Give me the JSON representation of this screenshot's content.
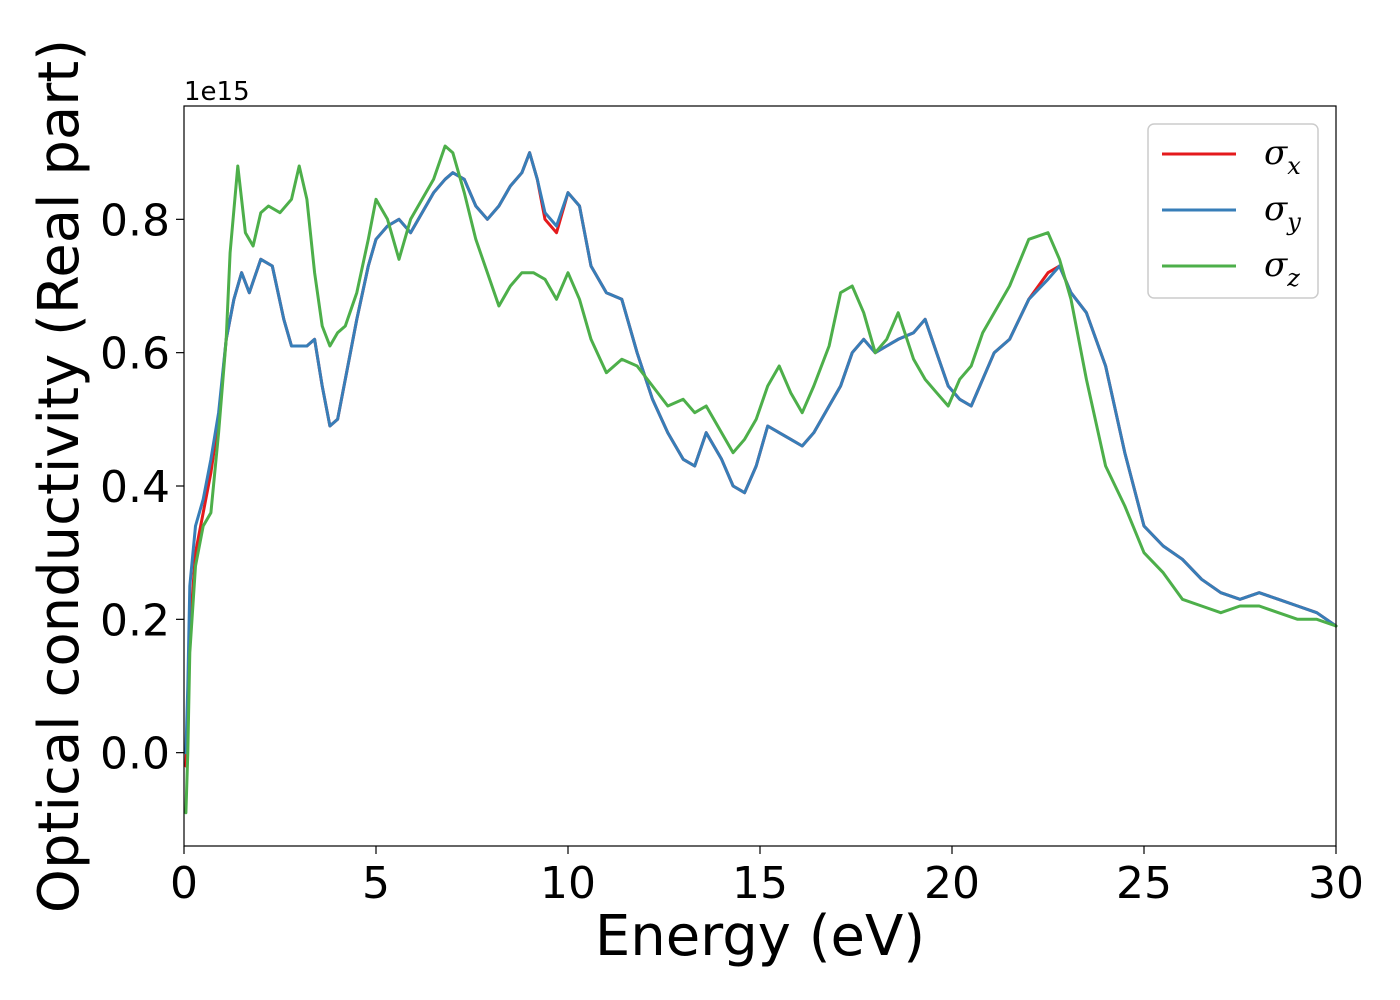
{
  "chart_data": {
    "type": "line",
    "xlabel": "Energy (eV)",
    "ylabel": "Optical conductivity (Real part)",
    "y_offset_label": "1e15",
    "xlim": [
      0,
      30
    ],
    "ylim": [
      -0.14,
      0.97
    ],
    "xticks": [
      "0",
      "5",
      "10",
      "15",
      "20",
      "25",
      "30"
    ],
    "yticks": [
      "0.0",
      "0.2",
      "0.4",
      "0.6",
      "0.8"
    ],
    "grid": false,
    "legend_position": "top-right",
    "series": [
      {
        "name": "σx",
        "symbol": "σ",
        "subscript": "x",
        "color": "#e41a1c",
        "x": [
          0.05,
          0.1,
          0.15,
          0.3,
          0.5,
          0.7,
          0.9,
          1.1,
          1.3,
          1.5,
          1.7,
          2.0,
          2.3,
          2.6,
          2.8,
          3.0,
          3.2,
          3.4,
          3.6,
          3.8,
          4.0,
          4.2,
          4.5,
          4.8,
          5.0,
          5.3,
          5.6,
          5.9,
          6.2,
          6.5,
          6.8,
          7.0,
          7.3,
          7.6,
          7.9,
          8.2,
          8.5,
          8.8,
          9.0,
          9.2,
          9.4,
          9.7,
          10.0,
          10.3,
          10.6,
          11.0,
          11.4,
          11.8,
          12.2,
          12.6,
          13.0,
          13.3,
          13.6,
          14.0,
          14.3,
          14.6,
          14.9,
          15.2,
          15.5,
          15.8,
          16.1,
          16.4,
          16.8,
          17.1,
          17.4,
          17.7,
          18.0,
          18.3,
          18.6,
          19.0,
          19.3,
          19.6,
          19.9,
          20.2,
          20.5,
          20.8,
          21.1,
          21.5,
          22.0,
          22.5,
          22.8,
          23.1,
          23.5,
          24.0,
          24.5,
          25.0,
          25.5,
          26.0,
          26.5,
          27.0,
          27.5,
          28.0,
          28.5,
          29.0,
          29.5,
          30.0
        ],
        "y": [
          -0.02,
          0.05,
          0.18,
          0.3,
          0.36,
          0.42,
          0.5,
          0.62,
          0.68,
          0.72,
          0.69,
          0.74,
          0.73,
          0.65,
          0.61,
          0.61,
          0.61,
          0.62,
          0.55,
          0.49,
          0.5,
          0.56,
          0.65,
          0.73,
          0.77,
          0.79,
          0.8,
          0.78,
          0.81,
          0.84,
          0.86,
          0.87,
          0.86,
          0.82,
          0.8,
          0.82,
          0.85,
          0.87,
          0.9,
          0.86,
          0.8,
          0.78,
          0.84,
          0.82,
          0.73,
          0.69,
          0.68,
          0.6,
          0.53,
          0.48,
          0.44,
          0.43,
          0.48,
          0.44,
          0.4,
          0.39,
          0.43,
          0.49,
          0.48,
          0.47,
          0.46,
          0.48,
          0.52,
          0.55,
          0.6,
          0.62,
          0.6,
          0.61,
          0.62,
          0.63,
          0.65,
          0.6,
          0.55,
          0.53,
          0.52,
          0.56,
          0.6,
          0.62,
          0.68,
          0.72,
          0.73,
          0.69,
          0.66,
          0.58,
          0.45,
          0.34,
          0.31,
          0.29,
          0.26,
          0.24,
          0.23,
          0.24,
          0.23,
          0.22,
          0.21,
          0.19
        ]
      },
      {
        "name": "σy",
        "symbol": "σ",
        "subscript": "y",
        "color": "#377eb8",
        "x": [
          0.05,
          0.1,
          0.15,
          0.3,
          0.5,
          0.7,
          0.9,
          1.1,
          1.3,
          1.5,
          1.7,
          2.0,
          2.3,
          2.6,
          2.8,
          3.0,
          3.2,
          3.4,
          3.6,
          3.8,
          4.0,
          4.2,
          4.5,
          4.8,
          5.0,
          5.3,
          5.6,
          5.9,
          6.2,
          6.5,
          6.8,
          7.0,
          7.3,
          7.6,
          7.9,
          8.2,
          8.5,
          8.8,
          9.0,
          9.2,
          9.4,
          9.7,
          10.0,
          10.3,
          10.6,
          11.0,
          11.4,
          11.8,
          12.2,
          12.6,
          13.0,
          13.3,
          13.6,
          14.0,
          14.3,
          14.6,
          14.9,
          15.2,
          15.5,
          15.8,
          16.1,
          16.4,
          16.8,
          17.1,
          17.4,
          17.7,
          18.0,
          18.3,
          18.6,
          19.0,
          19.3,
          19.6,
          19.9,
          20.2,
          20.5,
          20.8,
          21.1,
          21.5,
          22.0,
          22.5,
          22.8,
          23.1,
          23.5,
          24.0,
          24.5,
          25.0,
          25.5,
          26.0,
          26.5,
          27.0,
          27.5,
          28.0,
          28.5,
          29.0,
          29.5,
          30.0
        ],
        "y": [
          0.0,
          0.1,
          0.25,
          0.34,
          0.38,
          0.44,
          0.51,
          0.62,
          0.68,
          0.72,
          0.69,
          0.74,
          0.73,
          0.65,
          0.61,
          0.61,
          0.61,
          0.62,
          0.55,
          0.49,
          0.5,
          0.56,
          0.65,
          0.73,
          0.77,
          0.79,
          0.8,
          0.78,
          0.81,
          0.84,
          0.86,
          0.87,
          0.86,
          0.82,
          0.8,
          0.82,
          0.85,
          0.87,
          0.9,
          0.86,
          0.81,
          0.79,
          0.84,
          0.82,
          0.73,
          0.69,
          0.68,
          0.6,
          0.53,
          0.48,
          0.44,
          0.43,
          0.48,
          0.44,
          0.4,
          0.39,
          0.43,
          0.49,
          0.48,
          0.47,
          0.46,
          0.48,
          0.52,
          0.55,
          0.6,
          0.62,
          0.6,
          0.61,
          0.62,
          0.63,
          0.65,
          0.6,
          0.55,
          0.53,
          0.52,
          0.56,
          0.6,
          0.62,
          0.68,
          0.71,
          0.73,
          0.69,
          0.66,
          0.58,
          0.45,
          0.34,
          0.31,
          0.29,
          0.26,
          0.24,
          0.23,
          0.24,
          0.23,
          0.22,
          0.21,
          0.19
        ]
      },
      {
        "name": "σz",
        "symbol": "σ",
        "subscript": "z",
        "color": "#4daf4a",
        "x": [
          0.05,
          0.1,
          0.15,
          0.3,
          0.5,
          0.7,
          0.9,
          1.1,
          1.2,
          1.4,
          1.6,
          1.8,
          2.0,
          2.2,
          2.5,
          2.8,
          3.0,
          3.2,
          3.4,
          3.6,
          3.8,
          4.0,
          4.2,
          4.5,
          4.8,
          5.0,
          5.3,
          5.6,
          5.9,
          6.2,
          6.5,
          6.8,
          7.0,
          7.3,
          7.6,
          7.9,
          8.2,
          8.5,
          8.8,
          9.1,
          9.4,
          9.7,
          10.0,
          10.3,
          10.6,
          11.0,
          11.4,
          11.8,
          12.2,
          12.6,
          13.0,
          13.3,
          13.6,
          14.0,
          14.3,
          14.6,
          14.9,
          15.2,
          15.5,
          15.8,
          16.1,
          16.4,
          16.8,
          17.1,
          17.4,
          17.7,
          18.0,
          18.3,
          18.6,
          19.0,
          19.3,
          19.6,
          19.9,
          20.2,
          20.5,
          20.8,
          21.1,
          21.5,
          22.0,
          22.5,
          22.8,
          23.1,
          23.5,
          24.0,
          24.5,
          25.0,
          25.5,
          26.0,
          26.5,
          27.0,
          27.5,
          28.0,
          28.5,
          29.0,
          29.5,
          30.0
        ],
        "y": [
          -0.09,
          0.0,
          0.15,
          0.28,
          0.34,
          0.36,
          0.48,
          0.62,
          0.75,
          0.88,
          0.78,
          0.76,
          0.81,
          0.82,
          0.81,
          0.83,
          0.88,
          0.83,
          0.72,
          0.64,
          0.61,
          0.63,
          0.64,
          0.69,
          0.77,
          0.83,
          0.8,
          0.74,
          0.8,
          0.83,
          0.86,
          0.91,
          0.9,
          0.84,
          0.77,
          0.72,
          0.67,
          0.7,
          0.72,
          0.72,
          0.71,
          0.68,
          0.72,
          0.68,
          0.62,
          0.57,
          0.59,
          0.58,
          0.55,
          0.52,
          0.53,
          0.51,
          0.52,
          0.48,
          0.45,
          0.47,
          0.5,
          0.55,
          0.58,
          0.54,
          0.51,
          0.55,
          0.61,
          0.69,
          0.7,
          0.66,
          0.6,
          0.62,
          0.66,
          0.59,
          0.56,
          0.54,
          0.52,
          0.56,
          0.58,
          0.63,
          0.66,
          0.7,
          0.77,
          0.78,
          0.74,
          0.68,
          0.56,
          0.43,
          0.37,
          0.3,
          0.27,
          0.23,
          0.22,
          0.21,
          0.22,
          0.22,
          0.21,
          0.2,
          0.2,
          0.19
        ]
      }
    ]
  }
}
